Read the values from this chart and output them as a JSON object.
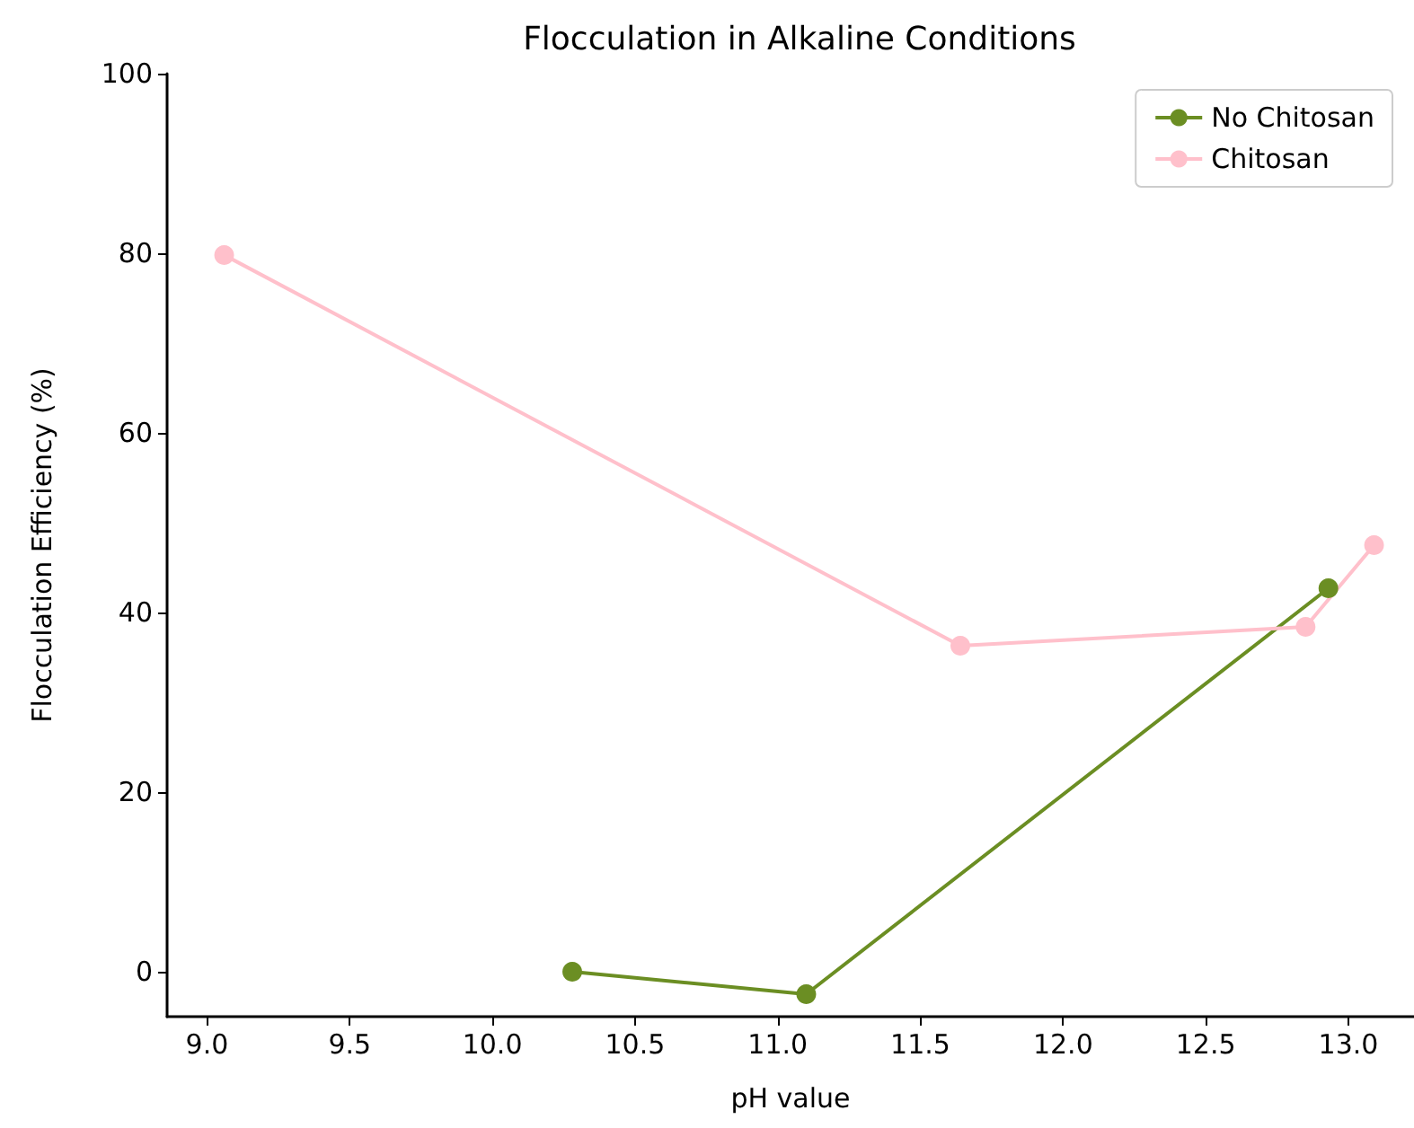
{
  "chart_data": {
    "type": "line",
    "title": "Flocculation in Alkaline Conditions",
    "xlabel": "pH value",
    "ylabel": "Flocculation Efficiency (%)",
    "series": [
      {
        "name": "No Chitosan",
        "color": "#6b8e23",
        "x": [
          10.28,
          11.1,
          12.93
        ],
        "values": [
          0,
          -2.5,
          42.7
        ]
      },
      {
        "name": "Chitosan",
        "color": "#ffc0cb",
        "x": [
          9.06,
          11.64,
          12.85,
          13.09
        ],
        "values": [
          79.8,
          36.3,
          38.4,
          47.5
        ]
      }
    ],
    "xlim": [
      8.86,
      13.23
    ],
    "xticks": [
      {
        "value": 9,
        "label": "9.0"
      },
      {
        "value": 9.5,
        "label": "9.5"
      },
      {
        "value": 10,
        "label": "10.0"
      },
      {
        "value": 10.5,
        "label": "10.5"
      },
      {
        "value": 11,
        "label": "11.0"
      },
      {
        "value": 11.5,
        "label": "11.5"
      },
      {
        "value": 12,
        "label": "12.0"
      },
      {
        "value": 12.5,
        "label": "12.5"
      },
      {
        "value": 13,
        "label": "13.0"
      }
    ],
    "ylim": [
      -5,
      100
    ],
    "yticks": [
      0,
      20,
      40,
      60,
      80,
      100
    ],
    "grid": false,
    "legend": "top right",
    "marker": "circle",
    "line_style": "solid"
  }
}
